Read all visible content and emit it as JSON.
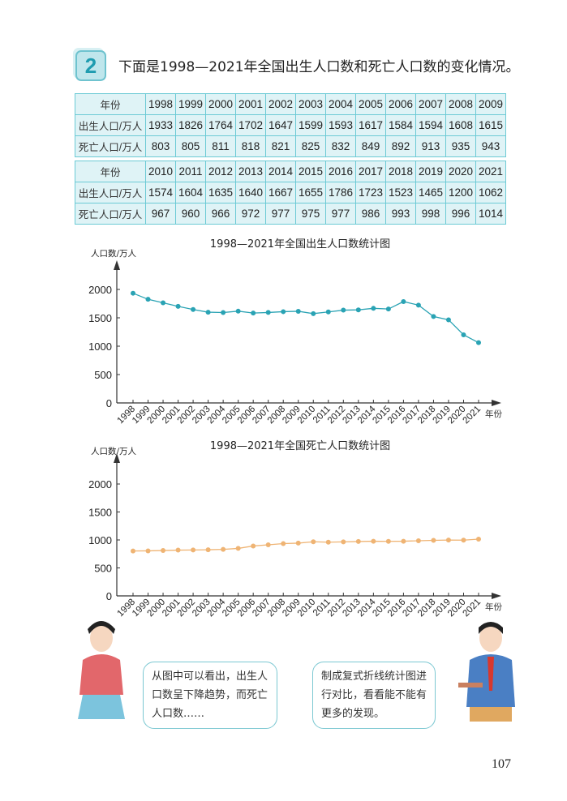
{
  "exercise": {
    "number": "2",
    "intro": "下面是1998—2021年全国出生人口数和死亡人口数的变化情况。"
  },
  "table": {
    "row_labels": [
      "年份",
      "出生人口/万人",
      "死亡人口/万人"
    ],
    "block1": {
      "years": [
        "1998",
        "1999",
        "2000",
        "2001",
        "2002",
        "2003",
        "2004",
        "2005",
        "2006",
        "2007",
        "2008",
        "2009"
      ],
      "births": [
        "1933",
        "1826",
        "1764",
        "1702",
        "1647",
        "1599",
        "1593",
        "1617",
        "1584",
        "1594",
        "1608",
        "1615"
      ],
      "deaths": [
        "803",
        "805",
        "811",
        "818",
        "821",
        "825",
        "832",
        "849",
        "892",
        "913",
        "935",
        "943"
      ]
    },
    "block2": {
      "years": [
        "2010",
        "2011",
        "2012",
        "2013",
        "2014",
        "2015",
        "2016",
        "2017",
        "2018",
        "2019",
        "2020",
        "2021"
      ],
      "births": [
        "1574",
        "1604",
        "1635",
        "1640",
        "1667",
        "1655",
        "1786",
        "1723",
        "1523",
        "1465",
        "1200",
        "1062"
      ],
      "deaths": [
        "967",
        "960",
        "966",
        "972",
        "977",
        "975",
        "977",
        "986",
        "993",
        "998",
        "996",
        "1014"
      ]
    }
  },
  "chart_data": [
    {
      "type": "line",
      "title": "1998—2021年全国出生人口数统计图",
      "ylabel": "人口数/万人",
      "xlabel": "年份",
      "x": [
        "1998",
        "1999",
        "2000",
        "2001",
        "2002",
        "2003",
        "2004",
        "2005",
        "2006",
        "2007",
        "2008",
        "2009",
        "2010",
        "2011",
        "2012",
        "2013",
        "2014",
        "2015",
        "2016",
        "2017",
        "2018",
        "2019",
        "2020",
        "2021"
      ],
      "values": [
        1933,
        1826,
        1764,
        1702,
        1647,
        1599,
        1593,
        1617,
        1584,
        1594,
        1608,
        1615,
        1574,
        1604,
        1635,
        1640,
        1667,
        1655,
        1786,
        1723,
        1523,
        1465,
        1200,
        1062
      ],
      "yticks": [
        "0",
        "500",
        "1000",
        "1500",
        "2000"
      ],
      "ylim": [
        0,
        2400
      ],
      "grid": false,
      "color": "#2aa3b4"
    },
    {
      "type": "line",
      "title": "1998—2021年全国死亡人口数统计图",
      "ylabel": "人口数/万人",
      "xlabel": "年份",
      "x": [
        "1998",
        "1999",
        "2000",
        "2001",
        "2002",
        "2003",
        "2004",
        "2005",
        "2006",
        "2007",
        "2008",
        "2009",
        "2010",
        "2011",
        "2012",
        "2013",
        "2014",
        "2015",
        "2016",
        "2017",
        "2018",
        "2019",
        "2020",
        "2021"
      ],
      "values": [
        803,
        805,
        811,
        818,
        821,
        825,
        832,
        849,
        892,
        913,
        935,
        943,
        967,
        960,
        966,
        972,
        977,
        975,
        977,
        986,
        993,
        998,
        996,
        1014
      ],
      "yticks": [
        "0",
        "500",
        "1000",
        "1500",
        "2000"
      ],
      "ylim": [
        0,
        2400
      ],
      "grid": false,
      "color": "#efb474"
    }
  ],
  "bubbles": {
    "girl": "从图中可以看出，出生人口数呈下降趋势，而死亡人口数……",
    "boy": "制成复式折线统计图进行对比，看看能不能有更多的发现。"
  },
  "page_number": "107"
}
